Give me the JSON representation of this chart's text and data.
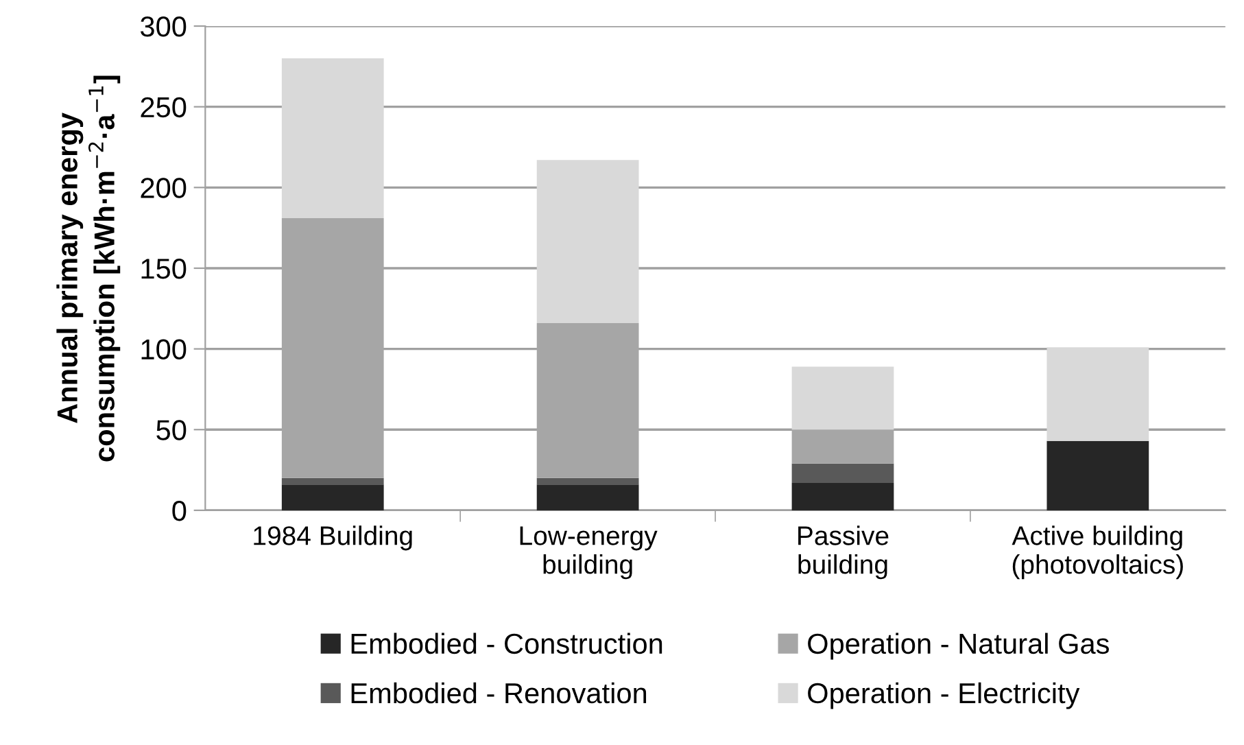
{
  "chart_data": {
    "type": "bar",
    "stacked": true,
    "ylabel": "Annual primary energy\nconsumption [kWh·m$^{−2}$·a$^{−1}$]",
    "categories": [
      "1984 Building",
      "Low-energy\nbuilding",
      "Passive\nbuilding",
      "Active building\n(photovoltaics)"
    ],
    "series": [
      {
        "name": "Embodied - Construction",
        "color": "#262626",
        "values": [
          16,
          16,
          17,
          43
        ]
      },
      {
        "name": "Embodied - Renovation",
        "color": "#595959",
        "values": [
          4,
          4,
          12,
          0
        ]
      },
      {
        "name": "Operation - Natural Gas",
        "color": "#a6a6a6",
        "values": [
          161,
          96,
          21,
          0
        ]
      },
      {
        "name": "Operation - Electricity",
        "color": "#d9d9d9",
        "values": [
          99,
          101,
          39,
          58
        ]
      }
    ],
    "ylim": [
      0,
      300
    ],
    "yticks": [
      0,
      50,
      100,
      150,
      200,
      250,
      300
    ],
    "grid": "y",
    "legend": "bottom"
  }
}
